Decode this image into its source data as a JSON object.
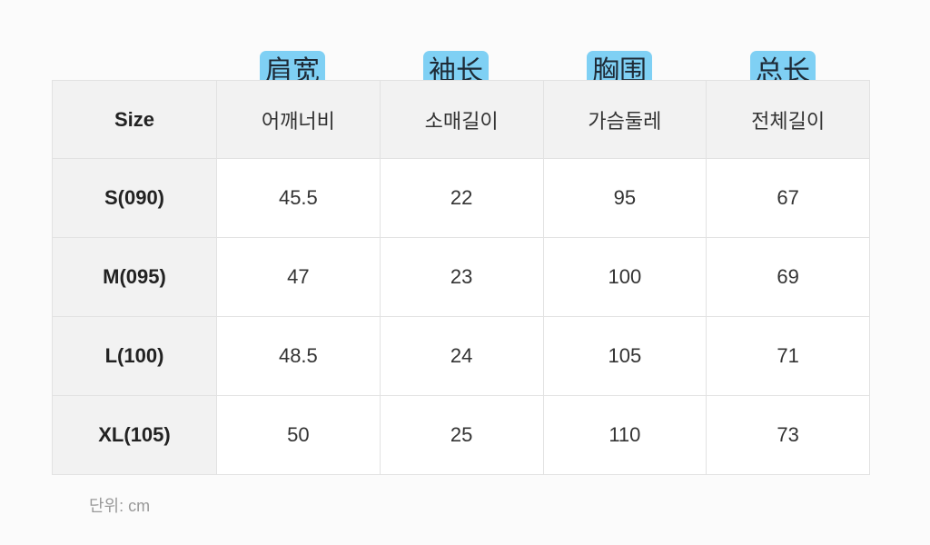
{
  "tags": [
    "肩宽",
    "袖长",
    "胸围",
    "总长"
  ],
  "header": [
    "Size",
    "어깨너비",
    "소매길이",
    "가슴둘레",
    "전체길이"
  ],
  "rows": [
    [
      "S(090)",
      "45.5",
      "22",
      "95",
      "67"
    ],
    [
      "M(095)",
      "47",
      "23",
      "100",
      "69"
    ],
    [
      "L(100)",
      "48.5",
      "24",
      "105",
      "71"
    ],
    [
      "XL(105)",
      "50",
      "25",
      "110",
      "73"
    ]
  ],
  "unit": "단위: cm",
  "colors": {
    "tag_bg": "#7fd0f4",
    "header_bg": "#f2f2f2",
    "border": "#e2e2e2"
  }
}
